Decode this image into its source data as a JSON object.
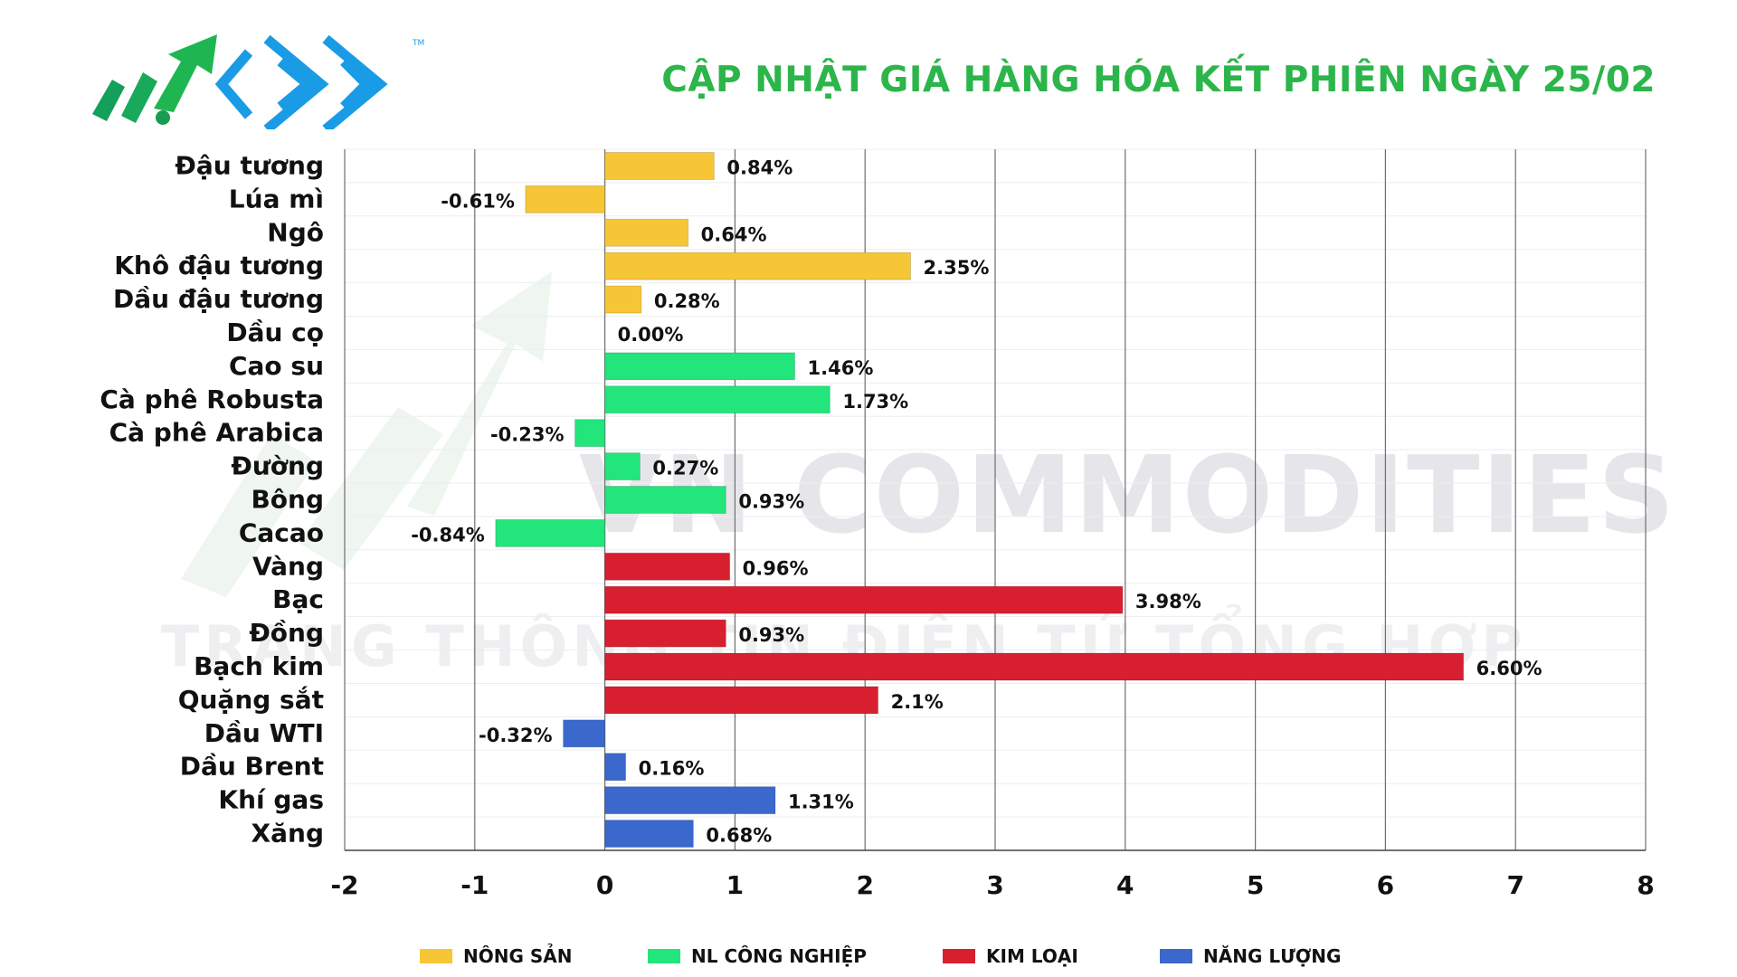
{
  "header": {
    "title": "CẬP NHẬT GIÁ HÀNG HÓA KẾT PHIÊN NGÀY 25/02",
    "tm": "TM"
  },
  "watermark": {
    "line1": "VN COMMODITIES",
    "line2": "TRANG THÔNG TIN ĐIỆN TỬ TỔNG HỢP"
  },
  "colors": {
    "nong_san": "#f7c636",
    "nl_cong_nghiep": "#22e57b",
    "kim_loai": "#d71f2f",
    "nang_luong": "#3a68cc",
    "title": "#2cb54a",
    "logo_blue": "#1a9be6"
  },
  "legend": [
    {
      "label": "NÔNG SẢN",
      "color": "#f7c636"
    },
    {
      "label": "NL CÔNG NGHIỆP",
      "color": "#22e57b"
    },
    {
      "label": "KIM LOẠI",
      "color": "#d71f2f"
    },
    {
      "label": "NĂNG LƯỢNG",
      "color": "#3a68cc"
    }
  ],
  "chart_data": {
    "type": "bar",
    "orientation": "horizontal",
    "xlim": [
      -2,
      8
    ],
    "xticks": [
      "-2",
      "-1",
      "0",
      "1",
      "2",
      "3",
      "4",
      "5",
      "6",
      "7",
      "8"
    ],
    "grid": true,
    "legend_position": "bottom",
    "categories": [
      "Đậu tương",
      "Lúa mì",
      "Ngô",
      "Khô đậu tương",
      "Dầu đậu tương",
      "Dầu cọ",
      "Cao su",
      "Cà phê Robusta",
      "Cà phê Arabica",
      "Đường",
      "Bông",
      "Cacao",
      "Vàng",
      "Bạc",
      "Đồng",
      "Bạch kim",
      "Quặng sắt",
      "Dầu WTI",
      "Dầu Brent",
      "Khí gas",
      "Xăng"
    ],
    "values": [
      0.84,
      -0.61,
      0.64,
      2.35,
      0.28,
      0.0,
      1.46,
      1.73,
      -0.23,
      0.27,
      0.93,
      -0.84,
      0.96,
      3.98,
      0.93,
      6.6,
      2.1,
      -0.32,
      0.16,
      1.31,
      0.68
    ],
    "labels": [
      "0.84%",
      "-0.61%",
      "0.64%",
      "2.35%",
      "0.28%",
      "0.00%",
      "1.46%",
      "1.73%",
      "-0.23%",
      "0.27%",
      "0.93%",
      "-0.84%",
      "0.96%",
      "3.98%",
      "0.93%",
      "6.60%",
      "2.1%",
      "-0.32%",
      "0.16%",
      "1.31%",
      "0.68%"
    ],
    "groups": [
      "NÔNG SẢN",
      "NÔNG SẢN",
      "NÔNG SẢN",
      "NÔNG SẢN",
      "NÔNG SẢN",
      "NÔNG SẢN",
      "NL CÔNG NGHIỆP",
      "NL CÔNG NGHIỆP",
      "NL CÔNG NGHIỆP",
      "NL CÔNG NGHIỆP",
      "NL CÔNG NGHIỆP",
      "NL CÔNG NGHIỆP",
      "KIM LOẠI",
      "KIM LOẠI",
      "KIM LOẠI",
      "KIM LOẠI",
      "KIM LOẠI",
      "NĂNG LƯỢNG",
      "NĂNG LƯỢNG",
      "NĂNG LƯỢNG",
      "NĂNG LƯỢNG"
    ]
  }
}
